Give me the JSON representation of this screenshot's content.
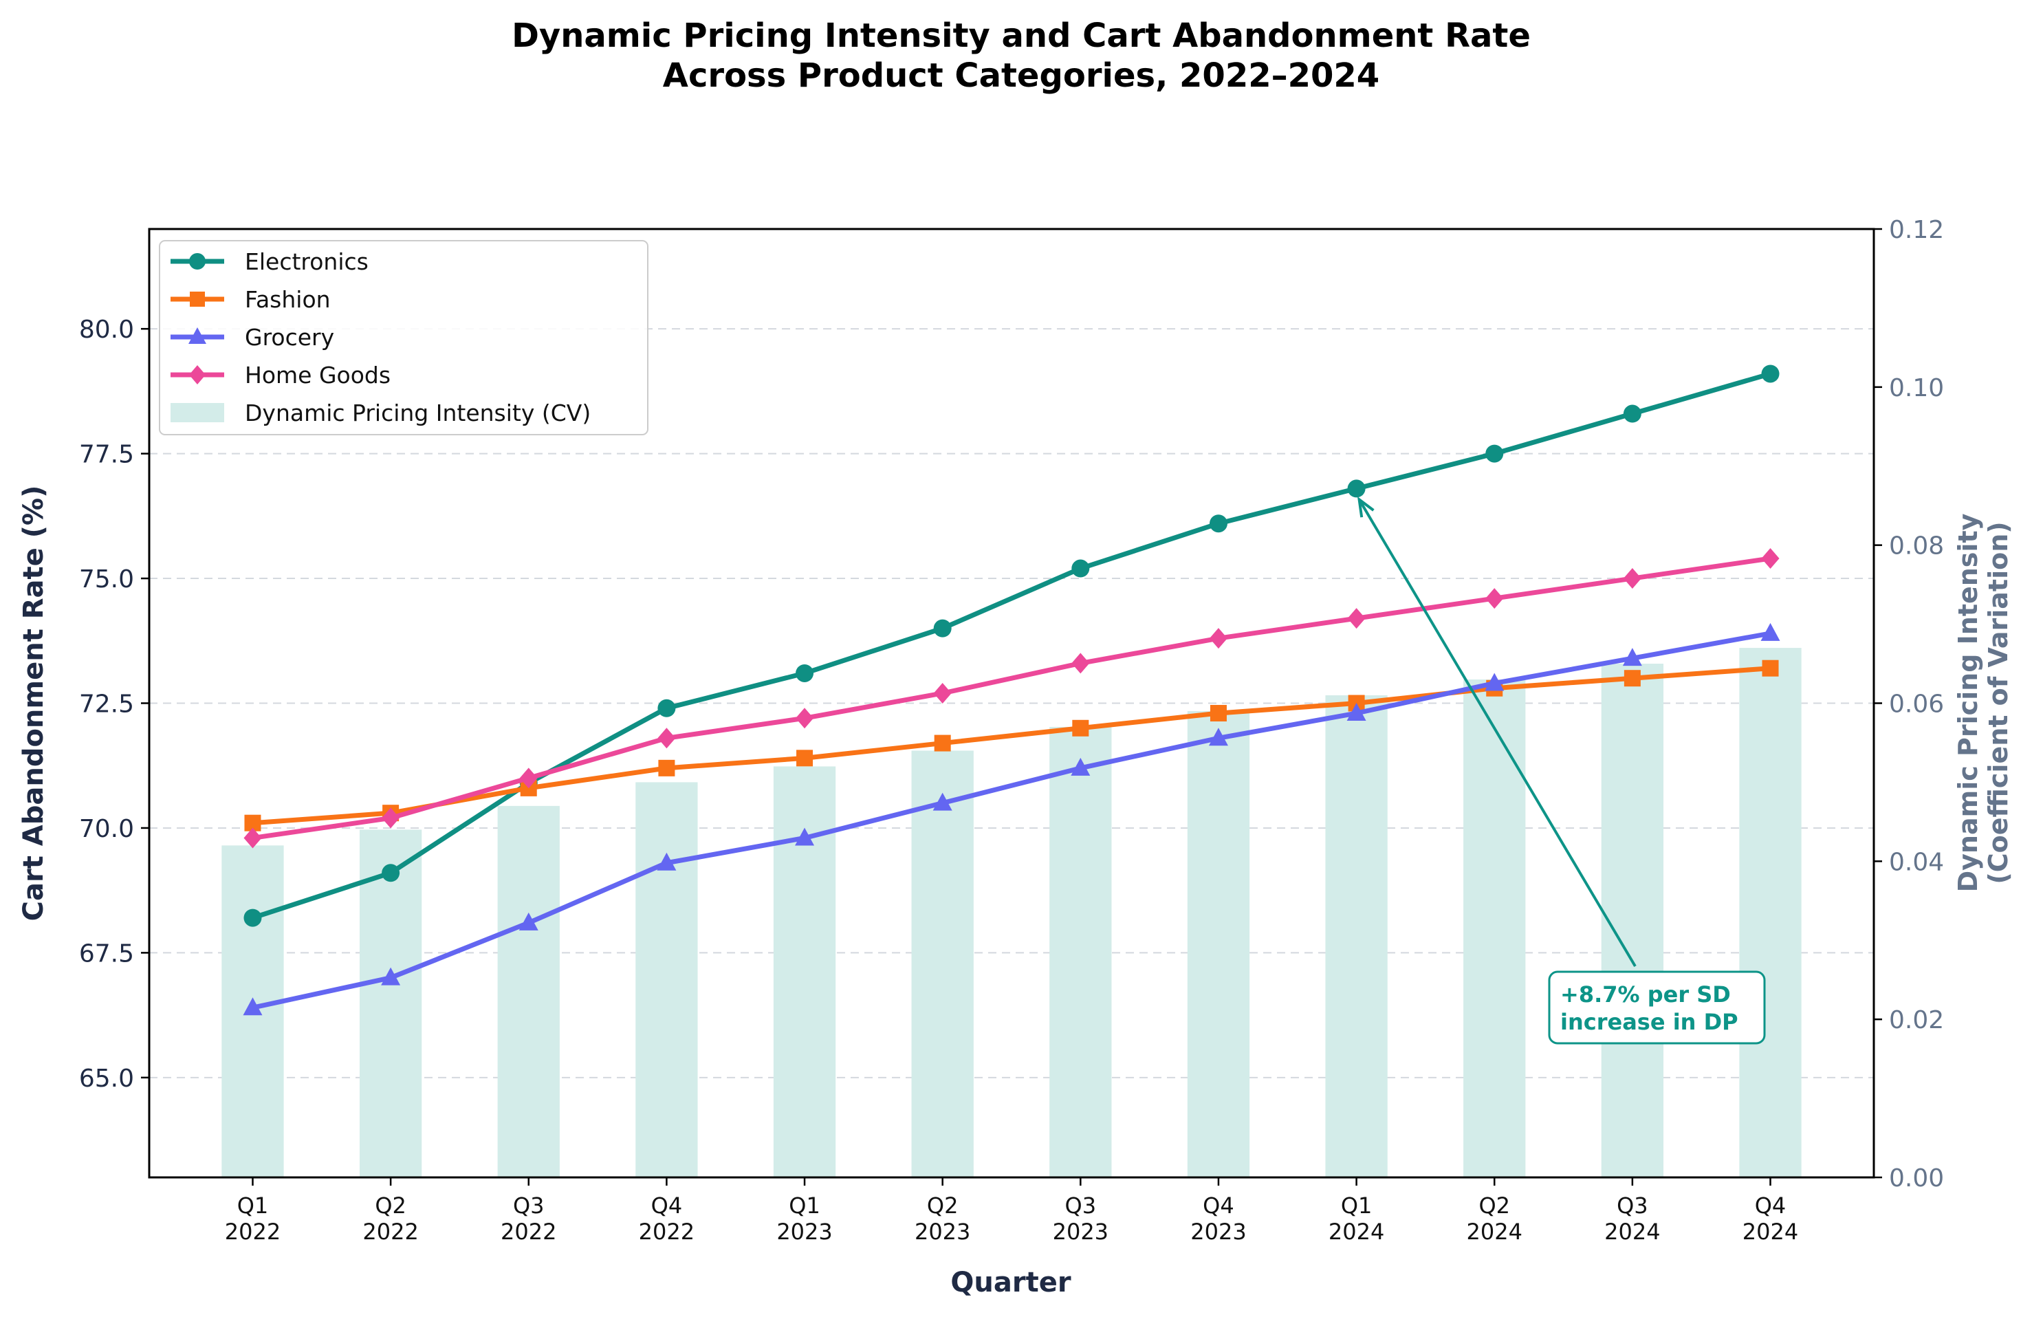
{
  "chart_data": {
    "type": "line",
    "title_lines": [
      "Dynamic Pricing Intensity and Cart Abandonment Rate",
      "Across Product Categories, 2022–2024"
    ],
    "xlabel": "Quarter",
    "ylabel": "Cart Abandonment Rate (%)",
    "y2label_lines": [
      "Dynamic Pricing Intensity",
      "(Coefficient of Variation)"
    ],
    "categories": [
      {
        "q": "Q1",
        "year": "2022"
      },
      {
        "q": "Q2",
        "year": "2022"
      },
      {
        "q": "Q3",
        "year": "2022"
      },
      {
        "q": "Q4",
        "year": "2022"
      },
      {
        "q": "Q1",
        "year": "2023"
      },
      {
        "q": "Q2",
        "year": "2023"
      },
      {
        "q": "Q3",
        "year": "2023"
      },
      {
        "q": "Q4",
        "year": "2023"
      },
      {
        "q": "Q1",
        "year": "2024"
      },
      {
        "q": "Q2",
        "year": "2024"
      },
      {
        "q": "Q3",
        "year": "2024"
      },
      {
        "q": "Q4",
        "year": "2024"
      }
    ],
    "ylim": [
      63,
      82
    ],
    "yticks": [
      "65.0",
      "67.5",
      "70.0",
      "72.5",
      "75.0",
      "77.5",
      "80.0"
    ],
    "y2lim": [
      0,
      0.12
    ],
    "y2ticks": [
      "0.00",
      "0.02",
      "0.04",
      "0.06",
      "0.08",
      "0.10",
      "0.12"
    ],
    "grid": "horizontal dashed",
    "legend_position": "upper-left",
    "series": [
      {
        "name": "Electronics",
        "color": "#0f8f83",
        "marker": "circle",
        "values": [
          68.2,
          69.1,
          70.9,
          72.4,
          73.1,
          74.0,
          75.2,
          76.1,
          76.8,
          77.5,
          78.3,
          79.1
        ]
      },
      {
        "name": "Fashion",
        "color": "#f97316",
        "marker": "square",
        "values": [
          70.1,
          70.3,
          70.8,
          71.2,
          71.4,
          71.7,
          72.0,
          72.3,
          72.5,
          72.8,
          73.0,
          73.2
        ]
      },
      {
        "name": "Grocery",
        "color": "#6366f1",
        "marker": "triangle",
        "values": [
          66.4,
          67.0,
          68.1,
          69.3,
          69.8,
          70.5,
          71.2,
          71.8,
          72.3,
          72.9,
          73.4,
          73.9
        ]
      },
      {
        "name": "Home Goods",
        "color": "#ec4899",
        "marker": "diamond",
        "values": [
          69.8,
          70.2,
          71.0,
          71.8,
          72.2,
          72.7,
          73.3,
          73.8,
          74.2,
          74.6,
          75.0,
          75.4
        ]
      }
    ],
    "bars": {
      "name": "Dynamic Pricing Intensity (CV)",
      "color": "#d3ece9",
      "axis": "right",
      "values": [
        0.042,
        0.044,
        0.047,
        0.05,
        0.052,
        0.054,
        0.057,
        0.059,
        0.061,
        0.063,
        0.065,
        0.067
      ]
    },
    "annotation": {
      "lines": [
        "+8.7% per SD",
        "increase in DP"
      ],
      "target_index": 8,
      "target_series": "Electronics",
      "color": "#0d9488"
    }
  }
}
